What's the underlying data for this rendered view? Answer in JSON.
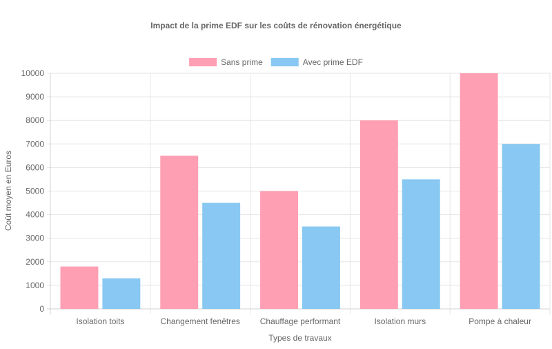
{
  "chart_data": {
    "type": "bar",
    "title": "Impact de la prime EDF sur les coûts de rénovation énergétique",
    "xlabel": "Types de travaux",
    "ylabel": "Coût moyen en Euros",
    "categories": [
      "Isolation toits",
      "Changement fenêtres",
      "Chauffage performant",
      "Isolation murs",
      "Pompe à chaleur"
    ],
    "series": [
      {
        "name": "Sans prime",
        "values": [
          1800,
          6500,
          5000,
          8000,
          10000
        ],
        "color": "#ff9fb3"
      },
      {
        "name": "Avec prime EDF",
        "values": [
          1300,
          4500,
          3500,
          5500,
          7000
        ],
        "color": "#88c8f2"
      }
    ],
    "ylim": [
      0,
      10000
    ],
    "yticks": [
      0,
      1000,
      2000,
      3000,
      4000,
      5000,
      6000,
      7000,
      8000,
      9000,
      10000
    ],
    "grid": true,
    "legend_position": "top"
  }
}
